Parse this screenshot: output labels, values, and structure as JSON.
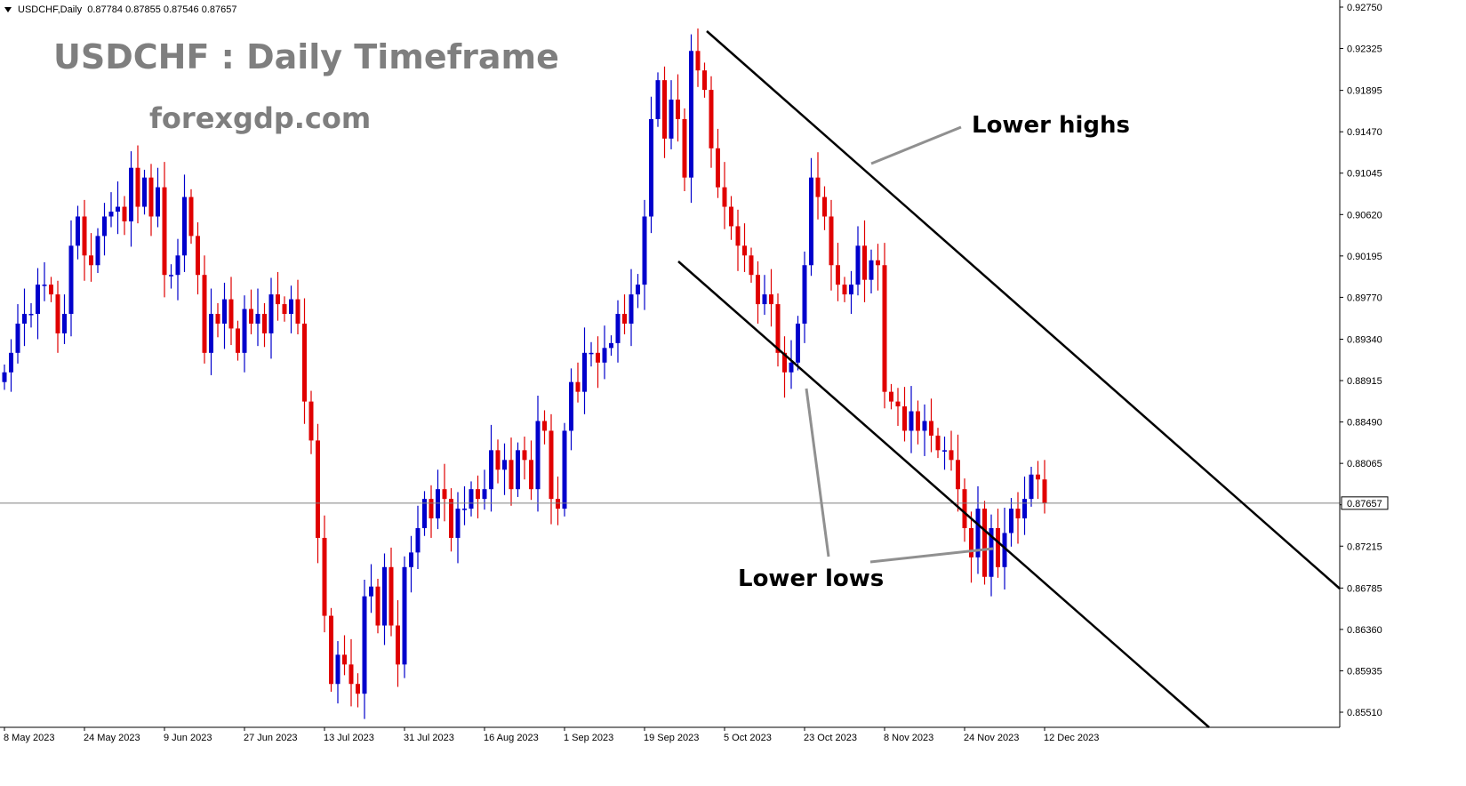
{
  "header": {
    "symbol": "USDCHF,Daily",
    "ohlc": "0.87784 0.87855 0.87546 0.87657"
  },
  "overlay_text": {
    "title": "USDCHF : Daily Timeframe",
    "website": "forexgdp.com"
  },
  "annotations": {
    "lower_highs": "Lower highs",
    "lower_lows": "Lower lows"
  },
  "colors": {
    "bull": "#0000cc",
    "bear": "#e00000",
    "trendline": "#000000",
    "pointer": "#909090",
    "price_line": "#808080"
  },
  "chart_data": {
    "type": "candlestick",
    "symbol": "USDCHF",
    "timeframe": "Daily",
    "y_axis_ticks": [
      0.9275,
      0.92325,
      0.91895,
      0.9147,
      0.91045,
      0.9062,
      0.90195,
      0.8977,
      0.8934,
      0.88915,
      0.8849,
      0.88065,
      0.8764,
      0.87215,
      0.86785,
      0.8636,
      0.85935,
      0.8551
    ],
    "y_axis_tick_labels": [
      "0.92750",
      "0.92325",
      "0.91895",
      "0.91470",
      "0.91045",
      "0.90620",
      "0.90195",
      "0.89770",
      "0.89340",
      "0.88915",
      "0.88490",
      "0.88065",
      "",
      "0.87215",
      "0.86785",
      "0.86360",
      "0.85935",
      "0.85510"
    ],
    "ylim": [
      0.853,
      0.928
    ],
    "x_axis_labels": [
      "8 May 2023",
      "24 May 2023",
      "9 Jun 2023",
      "27 Jun 2023",
      "13 Jul 2023",
      "31 Jul 2023",
      "16 Aug 2023",
      "1 Sep 2023",
      "19 Sep 2023",
      "5 Oct 2023",
      "23 Oct 2023",
      "8 Nov 2023",
      "24 Nov 2023",
      "12 Dec 2023"
    ],
    "x_axis_label_bar_index": [
      0,
      12,
      24,
      36,
      48,
      60,
      72,
      84,
      96,
      108,
      120,
      132,
      144,
      156
    ],
    "current_price": 0.87657,
    "current_price_label": "0.87657",
    "closes": [
      0.89,
      0.892,
      0.895,
      0.896,
      0.896,
      0.899,
      0.899,
      0.898,
      0.894,
      0.896,
      0.903,
      0.906,
      0.902,
      0.901,
      0.904,
      0.906,
      0.9065,
      0.907,
      0.9055,
      0.911,
      0.907,
      0.91,
      0.906,
      0.909,
      0.9,
      0.9,
      0.902,
      0.908,
      0.904,
      0.9,
      0.892,
      0.896,
      0.895,
      0.8975,
      0.8945,
      0.892,
      0.8965,
      0.895,
      0.896,
      0.894,
      0.898,
      0.897,
      0.896,
      0.8975,
      0.895,
      0.887,
      0.883,
      0.873,
      0.865,
      0.858,
      0.861,
      0.86,
      0.858,
      0.857,
      0.867,
      0.868,
      0.864,
      0.87,
      0.864,
      0.86,
      0.87,
      0.8715,
      0.874,
      0.877,
      0.875,
      0.878,
      0.877,
      0.873,
      0.876,
      0.876,
      0.878,
      0.877,
      0.878,
      0.882,
      0.88,
      0.881,
      0.878,
      0.882,
      0.881,
      0.878,
      0.885,
      0.884,
      0.877,
      0.876,
      0.884,
      0.889,
      0.888,
      0.892,
      0.892,
      0.891,
      0.8925,
      0.893,
      0.896,
      0.895,
      0.898,
      0.899,
      0.906,
      0.916,
      0.92,
      0.914,
      0.918,
      0.916,
      0.91,
      0.923,
      0.921,
      0.919,
      0.913,
      0.909,
      0.907,
      0.905,
      0.903,
      0.902,
      0.9,
      0.897,
      0.898,
      0.897,
      0.892,
      0.89,
      0.891,
      0.895,
      0.901,
      0.91,
      0.908,
      0.906,
      0.901,
      0.899,
      0.898,
      0.899,
      0.903,
      0.8995,
      0.9015,
      0.901,
      0.888,
      0.887,
      0.8865,
      0.884,
      0.886,
      0.884,
      0.885,
      0.8835,
      0.882,
      0.882,
      0.881,
      0.878,
      0.874,
      0.871,
      0.876,
      0.869,
      0.874,
      0.87,
      0.8735,
      0.876,
      0.875,
      0.877,
      0.8795,
      0.879,
      0.8766
    ]
  }
}
